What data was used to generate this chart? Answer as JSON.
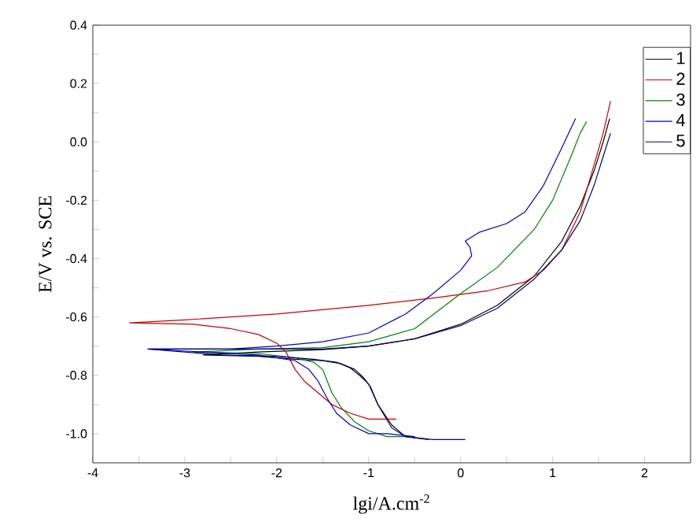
{
  "chart_data": {
    "type": "line",
    "xlabel": "lgi/A.cm$^{-2}$",
    "ylabel": "E/V vs. SCE",
    "xlim": [
      -4,
      2.5
    ],
    "ylim": [
      -1.1,
      0.4
    ],
    "xticks": [
      -4,
      {
        "value": -3.5,
        "label": null
      },
      -3,
      {
        "value": -2.5,
        "label": null
      },
      -2,
      {
        "value": -1.5,
        "label": null
      },
      -1,
      {
        "value": -0.5,
        "label": null
      },
      0,
      {
        "value": 0.5,
        "label": null
      },
      1,
      {
        "value": 1.5,
        "label": null
      },
      2
    ],
    "yticks": [
      {
        "value": -1.0,
        "label": "-1.0"
      },
      {
        "value": -0.9,
        "label": null
      },
      -0.8,
      {
        "value": -0.7,
        "label": null
      },
      -0.6,
      {
        "value": -0.5,
        "label": null
      },
      -0.4,
      {
        "value": -0.3,
        "label": null
      },
      -0.2,
      {
        "value": -0.1,
        "label": null
      },
      {
        "value": 0,
        "label": "0.0"
      },
      {
        "value": 0.1,
        "label": null
      },
      0.2,
      {
        "value": 0.3,
        "label": null
      },
      0.4
    ],
    "legend": "top right",
    "grid": false,
    "marker": "none",
    "line_style": "solid",
    "series": [
      {
        "name": "1",
        "color": "#000000",
        "x": [
          -0.35,
          -0.6,
          -0.75,
          -0.9,
          -0.98,
          -1.05,
          -1.15,
          -1.3,
          -1.5,
          -1.8,
          -2.2,
          -2.8,
          -2.2,
          -1.5,
          -1.0,
          -0.5,
          0,
          0.4,
          0.8,
          1.1,
          1.3,
          1.45,
          1.55,
          1.62
        ],
        "values": [
          -1.02,
          -1.01,
          -0.97,
          -0.9,
          -0.84,
          -0.81,
          -0.78,
          -0.76,
          -0.75,
          -0.745,
          -0.735,
          -0.73,
          -0.72,
          -0.712,
          -0.7,
          -0.675,
          -0.625,
          -0.56,
          -0.46,
          -0.34,
          -0.22,
          -0.1,
          0.0,
          0.08
        ]
      },
      {
        "name": "2",
        "color": "#cc0000",
        "x": [
          -0.7,
          -1.0,
          -1.2,
          -1.4,
          -1.55,
          -1.7,
          -1.8,
          -1.9,
          -2.0,
          -2.2,
          -2.5,
          -2.9,
          -3.6,
          -3.0,
          -2.0,
          -1.0,
          -0.3,
          0.3,
          0.7,
          0.9,
          1.1,
          1.3,
          1.45,
          1.55,
          1.63
        ],
        "values": [
          -0.95,
          -0.95,
          -0.93,
          -0.9,
          -0.86,
          -0.82,
          -0.78,
          -0.72,
          -0.69,
          -0.66,
          -0.64,
          -0.625,
          -0.62,
          -0.61,
          -0.59,
          -0.56,
          -0.535,
          -0.51,
          -0.48,
          -0.44,
          -0.37,
          -0.24,
          -0.08,
          0.03,
          0.14
        ]
      },
      {
        "name": "3",
        "color": "#008000",
        "x": [
          -0.5,
          -0.8,
          -1.0,
          -1.15,
          -1.3,
          -1.4,
          -1.45,
          -1.5,
          -1.6,
          -1.8,
          -2.2,
          -2.9,
          -2.2,
          -1.5,
          -1.0,
          -0.5,
          0,
          0.4,
          0.8,
          1.0,
          1.2,
          1.3,
          1.37
        ],
        "values": [
          -1.01,
          -1.01,
          -0.99,
          -0.96,
          -0.91,
          -0.86,
          -0.82,
          -0.78,
          -0.755,
          -0.74,
          -0.725,
          -0.72,
          -0.71,
          -0.705,
          -0.685,
          -0.64,
          -0.52,
          -0.43,
          -0.3,
          -0.2,
          -0.05,
          0.03,
          0.07
        ]
      },
      {
        "name": "4",
        "color": "#0000cc",
        "x": [
          -0.5,
          -0.8,
          -1.0,
          -1.2,
          -1.35,
          -1.45,
          -1.55,
          -1.65,
          -1.8,
          -2.2,
          -3.4,
          -2.5,
          -2.0,
          -1.5,
          -1.0,
          -0.6,
          -0.3,
          0,
          0.12,
          0.1,
          0.05,
          0.2,
          0.5,
          0.7,
          0.9,
          1.1,
          1.25
        ],
        "values": [
          -1.01,
          -1.0,
          -1.0,
          -0.97,
          -0.93,
          -0.88,
          -0.82,
          -0.78,
          -0.75,
          -0.73,
          -0.71,
          -0.71,
          -0.7,
          -0.685,
          -0.655,
          -0.59,
          -0.52,
          -0.44,
          -0.39,
          -0.36,
          -0.34,
          -0.31,
          -0.28,
          -0.24,
          -0.15,
          -0.02,
          0.08
        ]
      },
      {
        "name": "5",
        "color": "#000080",
        "x": [
          0.05,
          -0.3,
          -0.6,
          -0.75,
          -0.9,
          -1.0,
          -1.1,
          -1.2,
          -1.35,
          -1.6,
          -2.0,
          -2.6,
          -3.4,
          -2.5,
          -1.5,
          -1.0,
          -0.5,
          0,
          0.4,
          0.8,
          1.1,
          1.3,
          1.45,
          1.55,
          1.63
        ],
        "values": [
          -1.02,
          -1.02,
          -1.01,
          -0.98,
          -0.9,
          -0.83,
          -0.8,
          -0.775,
          -0.755,
          -0.745,
          -0.735,
          -0.73,
          -0.71,
          -0.71,
          -0.71,
          -0.7,
          -0.675,
          -0.63,
          -0.57,
          -0.47,
          -0.37,
          -0.27,
          -0.15,
          -0.05,
          0.03
        ]
      }
    ]
  }
}
